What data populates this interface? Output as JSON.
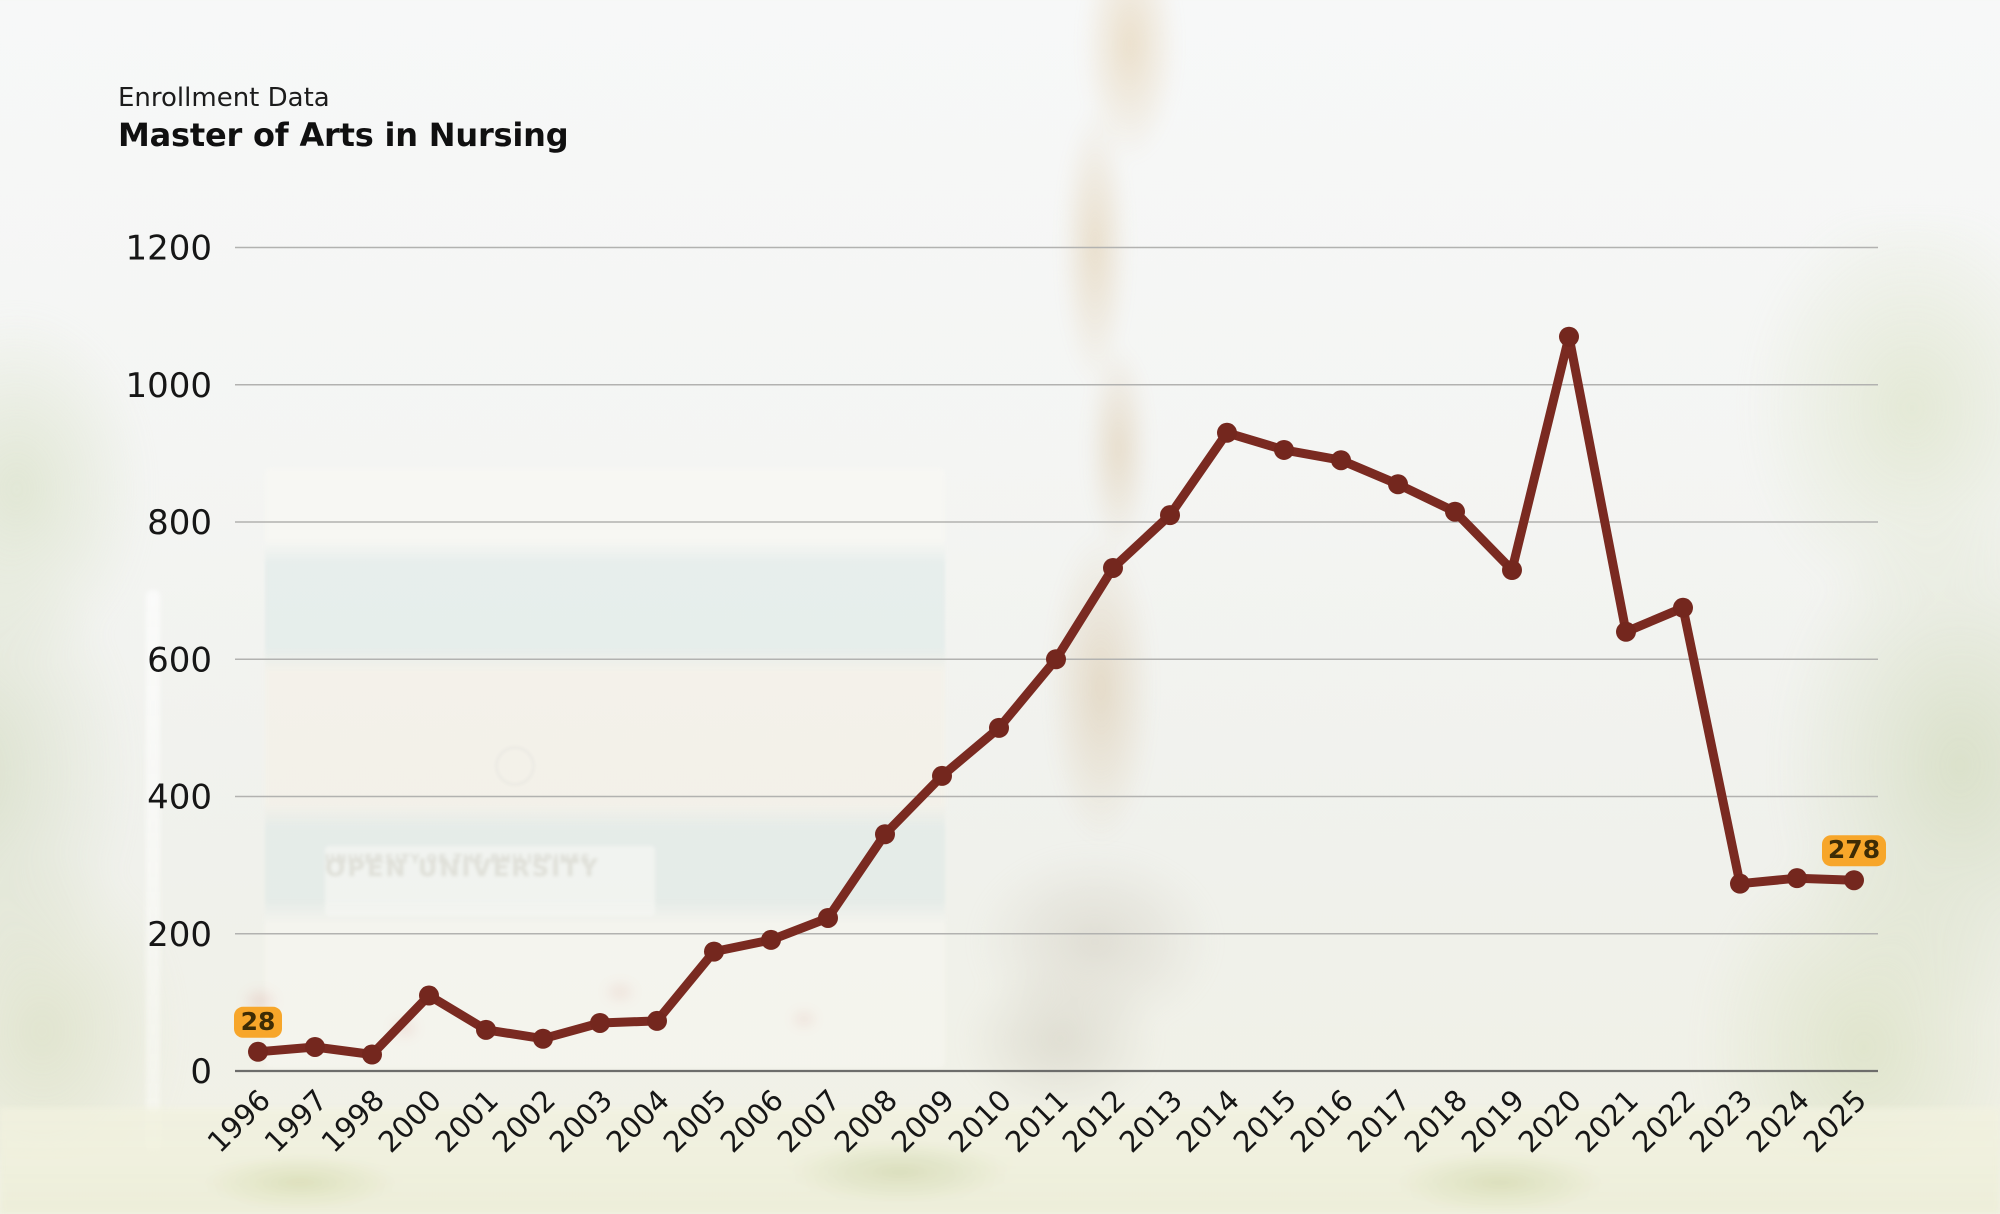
{
  "header": {
    "subtitle": "Enrollment Data",
    "title": "Master of Arts in Nursing"
  },
  "background": {
    "sign_line1": "UNIVERSITY OF THE PHILIPPINES",
    "sign_line2": "OPEN UNIVERSITY"
  },
  "chart_data": {
    "type": "line",
    "title": "Master of Arts in Nursing enrollment by year",
    "categories": [
      "1996",
      "1997",
      "1998",
      "2000",
      "2001",
      "2002",
      "2003",
      "2004",
      "2005",
      "2006",
      "2007",
      "2008",
      "2009",
      "2010",
      "2011",
      "2012",
      "2013",
      "2014",
      "2015",
      "2016",
      "2017",
      "2018",
      "2019",
      "2020",
      "2021",
      "2022",
      "2023",
      "2024",
      "2025"
    ],
    "values": [
      28,
      35,
      24,
      110,
      60,
      47,
      70,
      73,
      174,
      191,
      223,
      345,
      430,
      500,
      600,
      733,
      810,
      930,
      905,
      890,
      855,
      815,
      730,
      1070,
      640,
      675,
      273,
      281,
      278
    ],
    "xlabel": "",
    "ylabel": "",
    "ylim": [
      0,
      1200
    ],
    "yticks": [
      0,
      200,
      400,
      600,
      800,
      1000,
      1200
    ],
    "grid": "horizontal",
    "legend": "none",
    "x_tick_rotation": -45,
    "line_color": "#7a2a21",
    "marker_color": "#74271e",
    "grid_color": "#b2b2b0",
    "axis_color": "#6d6d6b",
    "tick_label_color": "#161616",
    "annotations": [
      {
        "category": "1996",
        "text": "28",
        "badge_color": "#f7a62a",
        "text_color": "#3d2c05"
      },
      {
        "category": "2025",
        "text": "278",
        "badge_color": "#f7a62a",
        "text_color": "#3d2c05"
      }
    ]
  }
}
